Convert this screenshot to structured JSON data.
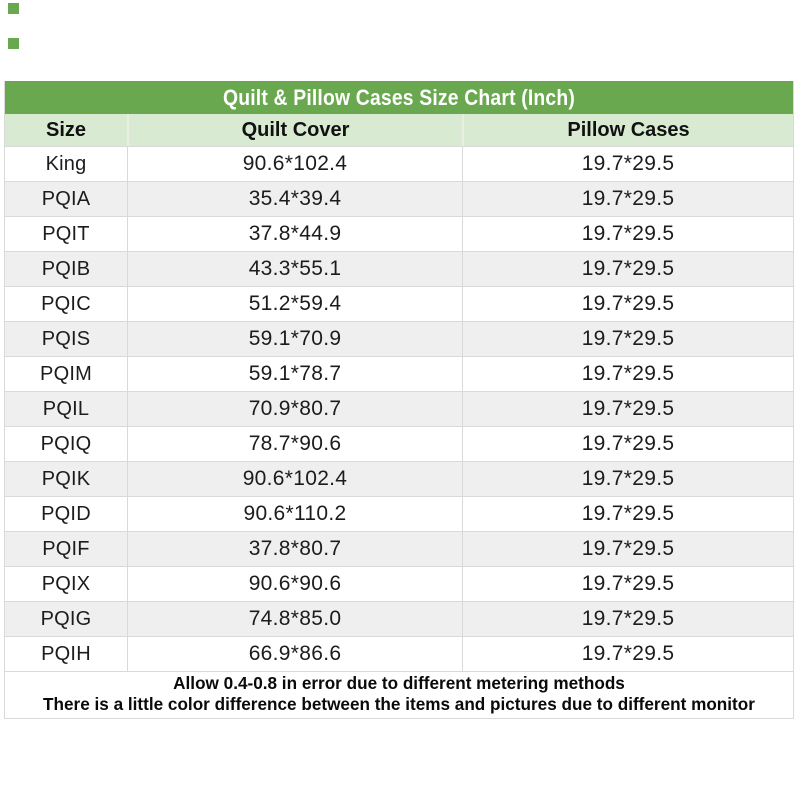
{
  "chart_data": {
    "type": "table",
    "title": "Quilt & Pillow Cases Size Chart (Inch)",
    "columns": [
      "Size",
      "Quilt Cover",
      "Pillow Cases"
    ],
    "rows": [
      [
        "King",
        "90.6*102.4",
        "19.7*29.5"
      ],
      [
        "PQIA",
        "35.4*39.4",
        "19.7*29.5"
      ],
      [
        "PQIT",
        "37.8*44.9",
        "19.7*29.5"
      ],
      [
        "PQIB",
        "43.3*55.1",
        "19.7*29.5"
      ],
      [
        "PQIC",
        "51.2*59.4",
        "19.7*29.5"
      ],
      [
        "PQIS",
        "59.1*70.9",
        "19.7*29.5"
      ],
      [
        "PQIM",
        "59.1*78.7",
        "19.7*29.5"
      ],
      [
        "PQIL",
        "70.9*80.7",
        "19.7*29.5"
      ],
      [
        "PQIQ",
        "78.7*90.6",
        "19.7*29.5"
      ],
      [
        "PQIK",
        "90.6*102.4",
        "19.7*29.5"
      ],
      [
        "PQID",
        "90.6*110.2",
        "19.7*29.5"
      ],
      [
        "PQIF",
        "37.8*80.7",
        "19.7*29.5"
      ],
      [
        "PQIX",
        "90.6*90.6",
        "19.7*29.5"
      ],
      [
        "PQIG",
        "74.8*85.0",
        "19.7*29.5"
      ],
      [
        "PQIH",
        "66.9*86.6",
        "19.7*29.5"
      ]
    ],
    "footnotes": [
      "Allow 0.4-0.8 in error due to different metering methods",
      "There is a little color difference between the items and pictures due to different monitor"
    ],
    "legend_position": "none",
    "grid": true
  },
  "colors": {
    "header_bg": "#6aa84f",
    "subheader_bg": "#d9ead3",
    "band_bg": "#efefef",
    "grid": "#d9d9d9",
    "title_text": "#ffffff",
    "text": "#1c1c1c"
  }
}
